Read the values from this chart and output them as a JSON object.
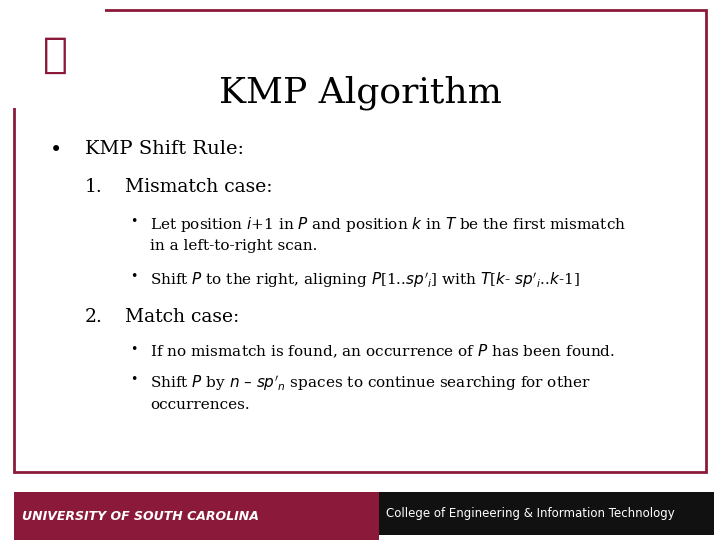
{
  "title": "KMP Algorithm",
  "title_fontsize": 26,
  "title_color": "#000000",
  "background_color": "#ffffff",
  "border_color": "#8B1A3A",
  "border_linewidth": 2.5,
  "bullet1_header": "KMP Shift Rule:",
  "section1_header": "Mismatch case:",
  "section1_bullet1": "Let position $i$+1 in $P$ and position $k$ in $T$ be the first mismatch\nin a left-to-right scan.",
  "section1_bullet2": "Shift $P$ to the right, aligning $P$[1..$sp'_i$] with $T$[$k$- $sp'_i$..$k$-1]",
  "section2_header": "Match case:",
  "section2_bullet1": "If no mismatch is found, an occurrence of $P$ has been found.",
  "section2_bullet2": "Shift $P$ by $n$ – $sp'_n$ spaces to continue searching for other\noccurrences.",
  "footer_left_text": "UNIVERSITY OF SOUTH CAROLINA",
  "footer_right_text": "College of Engineering & Information Technology",
  "footer_bg_color": "#8B1A3A",
  "footer_right_bg": "#111111",
  "footer_text_color": "#ffffff",
  "text_color": "#000000",
  "header_fontsize": 14,
  "sub_header_fontsize": 13.5,
  "body_fontsize": 11,
  "footer_fontsize": 9
}
